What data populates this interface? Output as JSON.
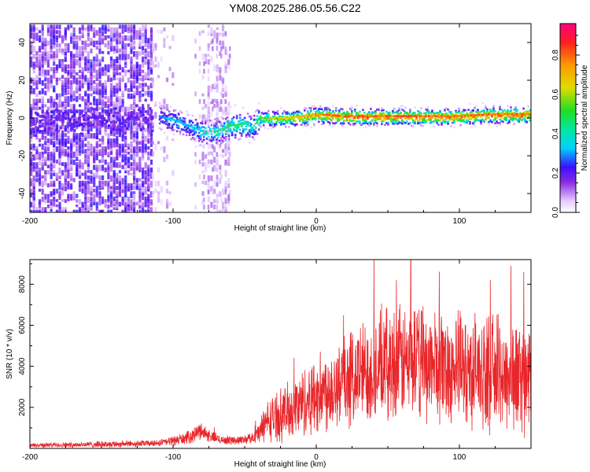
{
  "title": "YM08.2025.286.05.56.C22",
  "chart_data": [
    {
      "type": "heatmap",
      "title": "YM08.2025.286.05.56.C22",
      "xlabel": "Height of straight line (km)",
      "ylabel": "Frequency (Hz)",
      "xlim": [
        -200,
        150
      ],
      "ylim": [
        -50,
        50
      ],
      "xticks": [
        -200,
        -100,
        0,
        100
      ],
      "yticks": [
        -40,
        -20,
        0,
        20,
        40
      ],
      "colorbar": {
        "label": "Normalized spectral amplitude",
        "range": [
          0,
          0.96
        ],
        "ticks": [
          0.0,
          0.2,
          0.4,
          0.6,
          0.8
        ],
        "colormap": "rainbow"
      },
      "ridge": {
        "description": "narrow strong spectral line",
        "x": [
          -110,
          -100,
          -90,
          -80,
          -70,
          -60,
          -50,
          -45,
          -40,
          -30,
          -20,
          -10,
          0,
          20,
          40,
          60,
          80,
          100,
          120,
          150
        ],
        "frequency": [
          1,
          -1,
          -4,
          -7,
          -7,
          -4,
          -3,
          -5,
          0,
          0,
          0,
          1,
          2,
          1,
          1,
          1,
          1,
          1,
          2,
          2
        ],
        "amplitude": [
          0.3,
          0.35,
          0.35,
          0.4,
          0.45,
          0.5,
          0.45,
          0.4,
          0.55,
          0.65,
          0.7,
          0.75,
          0.8,
          0.85,
          0.85,
          0.85,
          0.85,
          0.85,
          0.85,
          0.85
        ]
      },
      "noise_regions": [
        {
          "x_range": [
            -200,
            -115
          ],
          "amplitude": 0.15,
          "density": "high"
        },
        {
          "x_range": [
            -115,
            -100
          ],
          "amplitude": 0.07,
          "density": "low"
        },
        {
          "x_range": [
            -80,
            -60
          ],
          "amplitude": 0.07,
          "density": "medium"
        }
      ]
    },
    {
      "type": "line",
      "xlabel": "Height of straight line (km)",
      "ylabel": "SNR (10 * v/v)",
      "xlim": [
        -200,
        150
      ],
      "ylim": [
        0,
        9200
      ],
      "xticks": [
        -200,
        -100,
        0,
        100
      ],
      "yticks": [
        2000,
        4000,
        6000,
        8000
      ],
      "series": [
        {
          "name": "SNR",
          "color": "#e8262a",
          "envelope_x": [
            -200,
            -150,
            -110,
            -90,
            -80,
            -75,
            -65,
            -55,
            -45,
            -40,
            -35,
            -30,
            -20,
            -10,
            0,
            10,
            20,
            30,
            40,
            50,
            60,
            70,
            80,
            90,
            100,
            110,
            120,
            130,
            140,
            150
          ],
          "envelope_mean": [
            150,
            200,
            250,
            500,
            900,
            600,
            400,
            400,
            500,
            800,
            1300,
            1500,
            1800,
            2200,
            2600,
            3000,
            3300,
            3600,
            3900,
            4100,
            4200,
            4200,
            4100,
            4000,
            3900,
            3800,
            3700,
            3600,
            3500,
            3400
          ],
          "envelope_amp": [
            100,
            150,
            150,
            300,
            400,
            300,
            200,
            200,
            250,
            500,
            900,
            1100,
            1300,
            1600,
            1800,
            2000,
            2200,
            2400,
            2500,
            2600,
            2600,
            2600,
            2600,
            2600,
            2600,
            2600,
            2600,
            2600,
            2600,
            2600
          ],
          "peaks": [
            {
              "x": 66,
              "y": 9200
            },
            {
              "x": 136,
              "y": 8900
            },
            {
              "x": 145,
              "y": 8600
            },
            {
              "x": 56,
              "y": 8200
            }
          ]
        }
      ]
    }
  ]
}
